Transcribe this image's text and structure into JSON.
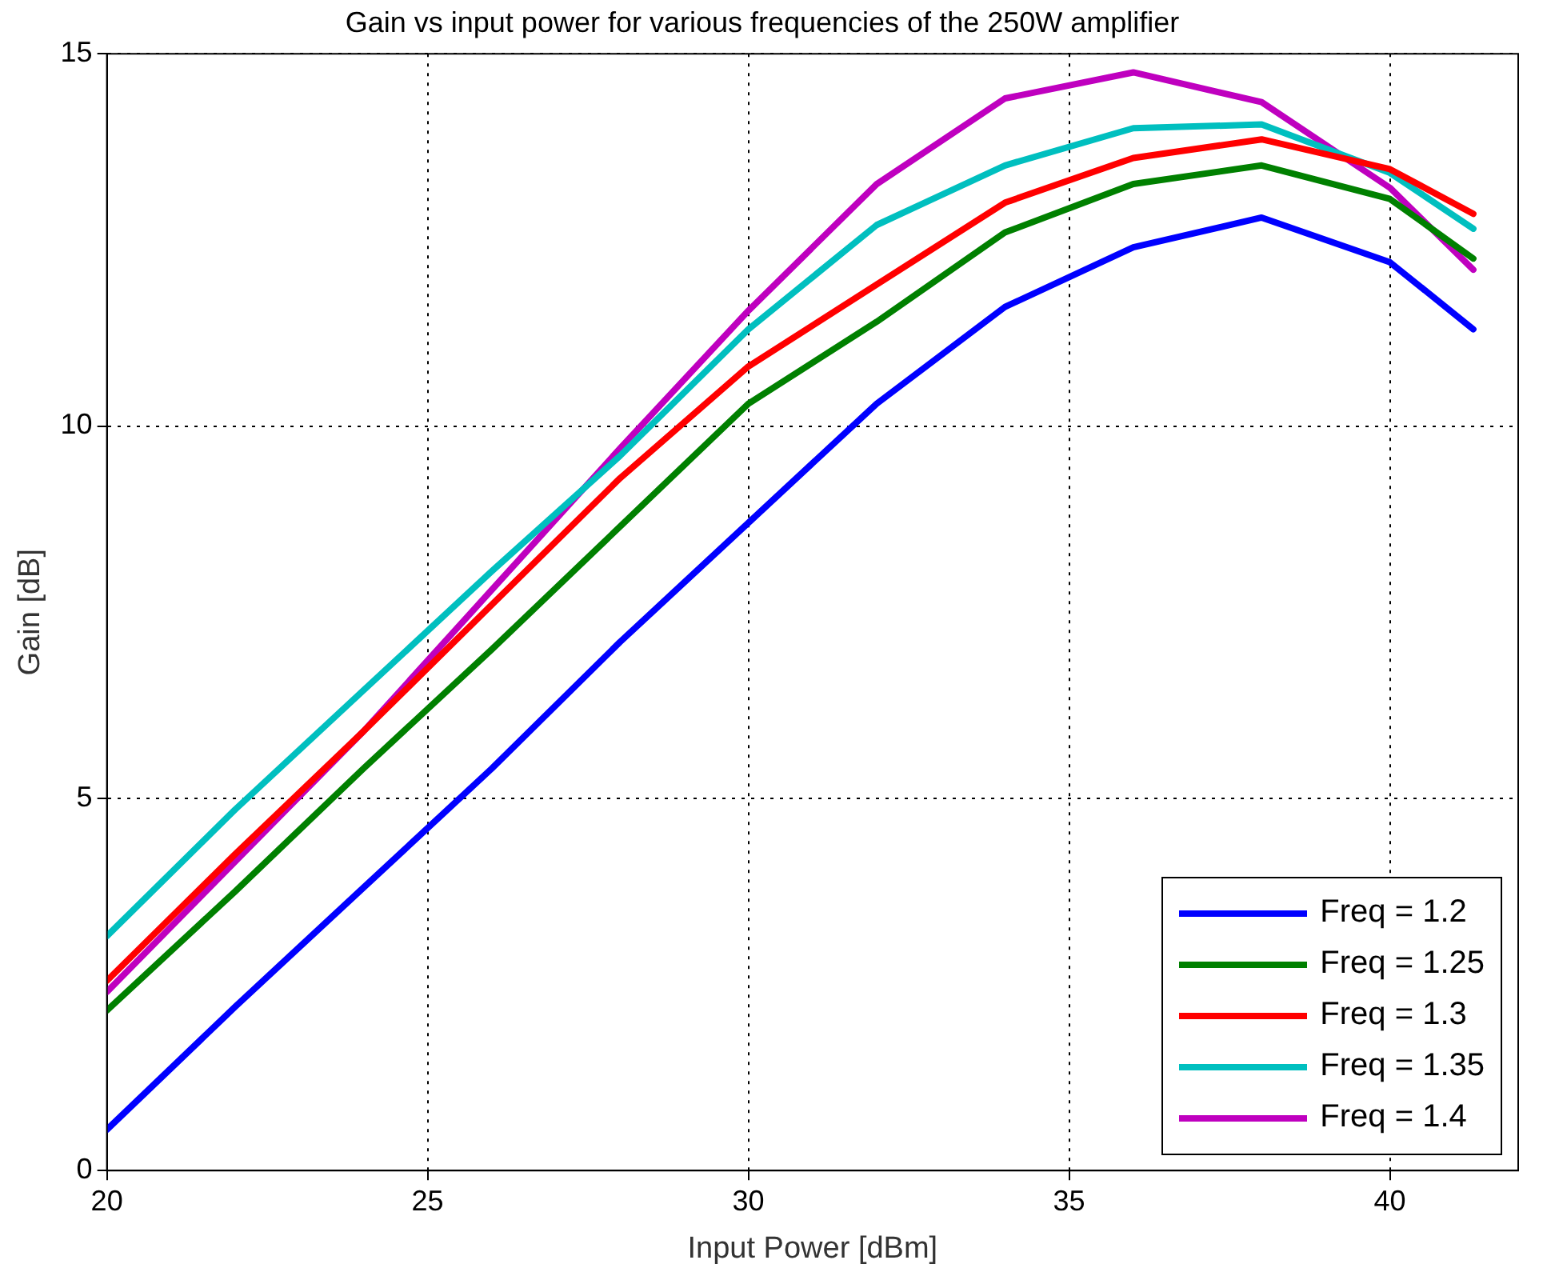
{
  "chart_data": {
    "type": "line",
    "title": "Gain vs input power for various frequencies of the 250W amplifier",
    "xlabel": "Input Power [dBm]",
    "ylabel": "Gain [dB]",
    "x": [
      20,
      22,
      24,
      26,
      28,
      30,
      32,
      34,
      36,
      38,
      40,
      41.3
    ],
    "series": [
      {
        "name": "Freq = 1.2",
        "color": "#0000ff",
        "values": [
          0.55,
          2.2,
          3.8,
          5.4,
          7.1,
          8.7,
          10.3,
          11.6,
          12.4,
          12.8,
          12.2,
          11.3
        ]
      },
      {
        "name": "Freq = 1.25",
        "color": "#008000",
        "values": [
          2.15,
          3.75,
          5.4,
          7.0,
          8.65,
          10.3,
          11.4,
          12.6,
          13.25,
          13.5,
          13.05,
          12.25
        ]
      },
      {
        "name": "Freq = 1.3",
        "color": "#ff0000",
        "values": [
          2.55,
          4.25,
          5.9,
          7.6,
          9.3,
          10.8,
          11.9,
          13.0,
          13.6,
          13.85,
          13.45,
          12.85
        ]
      },
      {
        "name": "Freq = 1.35",
        "color": "#00bfbf",
        "values": [
          3.15,
          4.85,
          6.45,
          8.05,
          9.6,
          11.3,
          12.7,
          13.5,
          14.0,
          14.05,
          13.4,
          12.65
        ]
      },
      {
        "name": "Freq = 1.4",
        "color": "#bf00bf",
        "values": [
          2.4,
          4.15,
          5.9,
          7.8,
          9.7,
          11.55,
          13.25,
          14.4,
          14.75,
          14.35,
          13.2,
          12.1
        ]
      }
    ],
    "xlim": [
      20,
      42
    ],
    "xticks": [
      20,
      25,
      30,
      35,
      40
    ],
    "ylim": [
      0,
      15
    ],
    "yticks": [
      0,
      5,
      10,
      15
    ],
    "grid": true,
    "legend": "bottom right",
    "line_style": "solid",
    "marker": "none"
  }
}
